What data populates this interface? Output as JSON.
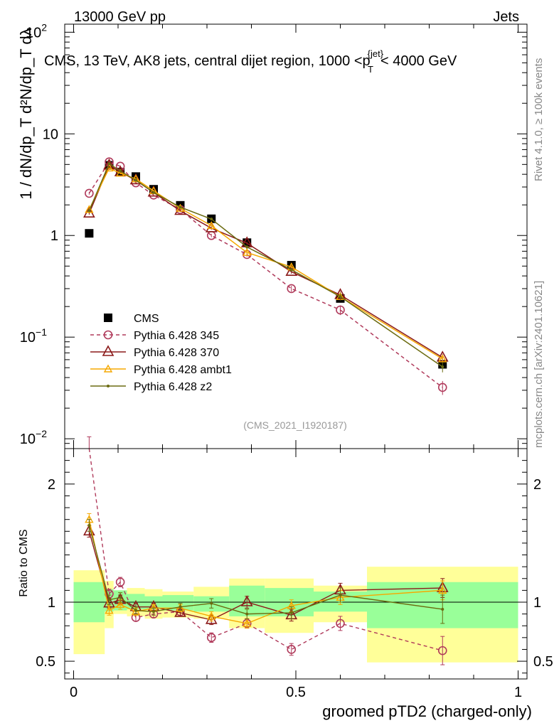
{
  "header": {
    "left": "13000 GeV pp",
    "right": "Jets"
  },
  "chart_data": {
    "type": "line",
    "title": "CMS, 13 TeV, AK8 jets, central dijet region, 1000 <p_T^{jet}< 4000 GeV",
    "title_main": "CMS, 13 TeV, AK8 jets, central dijet region, 1000 <p",
    "title_sup": "{jet}",
    "title_sub": "T",
    "title_end": "< 4000 GeV",
    "xlabel": "groomed pTD2 (charged-only)",
    "ylabel_top": "1 / dN/dp_T  d²N/dp_T dλ",
    "ylabel_ratio": "Ratio to CMS",
    "side_label_1": "Rivet 4.1.0, ≥ 100k events",
    "side_label_2": "mcplots.cern.ch [arXiv:2401.10621]",
    "analysis_label": "(CMS_2021_I1920187)",
    "xlim": [
      -0.02,
      1.02
    ],
    "ylim_main": [
      0.008,
      120
    ],
    "ylim_ratio": [
      0.35,
      2.3
    ],
    "x_ticks": [
      0,
      0.5,
      1
    ],
    "x_tick_labels": [
      "0",
      "0.5",
      "1"
    ],
    "y_main_ticks": [
      {
        "value": 100,
        "base": "10",
        "exp": "2"
      },
      {
        "value": 10,
        "base": "10",
        "exp": ""
      },
      {
        "value": 1,
        "base": "1",
        "exp": ""
      },
      {
        "value": 0.1,
        "base": "10",
        "exp": "−1"
      },
      {
        "value": 0.01,
        "base": "10",
        "exp": "−2"
      }
    ],
    "y_ratio_ticks": [
      {
        "value": 2,
        "label": "2"
      },
      {
        "value": 1,
        "label": "1"
      },
      {
        "value": 0.5,
        "label": "0.5"
      }
    ],
    "bins": [
      {
        "lo": 0.0,
        "hi": 0.07,
        "x": 0.035
      },
      {
        "lo": 0.07,
        "hi": 0.09,
        "x": 0.08
      },
      {
        "lo": 0.09,
        "hi": 0.12,
        "x": 0.105
      },
      {
        "lo": 0.12,
        "hi": 0.16,
        "x": 0.14
      },
      {
        "lo": 0.16,
        "hi": 0.2,
        "x": 0.18
      },
      {
        "lo": 0.2,
        "hi": 0.27,
        "x": 0.24
      },
      {
        "lo": 0.27,
        "hi": 0.35,
        "x": 0.31
      },
      {
        "lo": 0.35,
        "hi": 0.43,
        "x": 0.39
      },
      {
        "lo": 0.43,
        "hi": 0.54,
        "x": 0.49
      },
      {
        "lo": 0.54,
        "hi": 0.66,
        "x": 0.6
      },
      {
        "lo": 0.66,
        "hi": 1.0,
        "x": 0.83
      }
    ],
    "bands": {
      "green": [
        [
          0.83,
          1.17
        ],
        [
          0.92,
          1.11
        ],
        [
          0.93,
          1.1
        ],
        [
          0.94,
          1.07
        ],
        [
          0.94,
          1.05
        ],
        [
          0.93,
          1.06
        ],
        [
          0.92,
          1.05
        ],
        [
          0.88,
          1.14
        ],
        [
          0.88,
          1.12
        ],
        [
          0.92,
          1.09
        ],
        [
          0.78,
          1.17
        ]
      ],
      "yellow": [
        [
          0.56,
          1.27
        ],
        [
          0.78,
          1.18
        ],
        [
          0.9,
          1.1
        ],
        [
          0.88,
          1.12
        ],
        [
          0.86,
          1.11
        ],
        [
          0.87,
          1.09
        ],
        [
          0.86,
          1.13
        ],
        [
          0.78,
          1.2
        ],
        [
          0.74,
          1.2
        ],
        [
          0.83,
          1.14
        ],
        [
          0.49,
          1.3
        ]
      ]
    },
    "series": [
      {
        "name": "CMS",
        "color": "#000000",
        "marker": "square",
        "dash": "",
        "values": [
          1.05,
          4.9,
          4.2,
          3.8,
          2.85,
          1.98,
          1.46,
          0.85,
          0.51,
          0.24,
          0.054
        ],
        "errors": [
          0,
          0,
          0,
          0,
          0,
          0,
          0,
          0,
          0,
          0,
          0
        ],
        "ratio": [
          1,
          1,
          1,
          1,
          1,
          1,
          1,
          1,
          1,
          1,
          1
        ],
        "ratio_errors": [
          0,
          0,
          0,
          0,
          0,
          0,
          0,
          0,
          0,
          0,
          0
        ]
      },
      {
        "name": "Pythia 6.428 345",
        "color": "#b03a5b",
        "marker": "circle",
        "dash": "5,4",
        "values": [
          2.6,
          5.3,
          4.8,
          3.3,
          2.5,
          1.8,
          1.0,
          0.65,
          0.3,
          0.185,
          0.032
        ],
        "errors": [
          0.08,
          0.1,
          0.1,
          0.08,
          0.06,
          0.05,
          0.04,
          0.03,
          0.02,
          0.02,
          0.005
        ],
        "ratio": [
          2.45,
          1.07,
          1.17,
          0.87,
          0.9,
          0.92,
          0.7,
          0.82,
          0.6,
          0.82,
          0.59
        ],
        "ratio_errors": [
          0.05,
          0.04,
          0.04,
          0.03,
          0.03,
          0.03,
          0.04,
          0.04,
          0.05,
          0.06,
          0.12
        ]
      },
      {
        "name": "Pythia 6.428 370",
        "color": "#8b1a1a",
        "marker": "triangle-open",
        "dash": "",
        "values": [
          1.65,
          4.9,
          4.2,
          3.5,
          2.65,
          1.75,
          1.18,
          0.84,
          0.44,
          0.26,
          0.063
        ],
        "errors": [
          0.05,
          0.1,
          0.1,
          0.08,
          0.06,
          0.05,
          0.04,
          0.03,
          0.02,
          0.02,
          0.005
        ],
        "ratio": [
          1.6,
          0.99,
          1.02,
          0.96,
          0.96,
          0.91,
          0.85,
          1.0,
          0.89,
          1.1,
          1.12
        ],
        "ratio_errors": [
          0.05,
          0.04,
          0.04,
          0.03,
          0.03,
          0.03,
          0.04,
          0.05,
          0.05,
          0.06,
          0.08
        ]
      },
      {
        "name": "Pythia 6.428 ambt1",
        "color": "#f5a800",
        "marker": "triangle-small",
        "dash": "",
        "values": [
          1.8,
          4.6,
          4.1,
          3.6,
          2.75,
          1.85,
          1.25,
          0.68,
          0.49,
          0.25,
          0.061
        ],
        "errors": [
          0.05,
          0.1,
          0.1,
          0.08,
          0.06,
          0.05,
          0.04,
          0.03,
          0.02,
          0.02,
          0.005
        ],
        "ratio": [
          1.7,
          0.93,
          0.98,
          0.92,
          0.95,
          0.95,
          0.88,
          0.82,
          0.97,
          1.04,
          1.1
        ],
        "ratio_errors": [
          0.05,
          0.04,
          0.04,
          0.03,
          0.03,
          0.03,
          0.04,
          0.04,
          0.05,
          0.06,
          0.08
        ]
      },
      {
        "name": "Pythia 6.428 z2",
        "color": "#6b6b10",
        "marker": "dot",
        "dash": "",
        "values": [
          1.75,
          5.1,
          4.3,
          3.5,
          2.65,
          1.9,
          1.45,
          0.77,
          0.46,
          0.25,
          0.051
        ],
        "errors": [
          0.05,
          0.1,
          0.1,
          0.08,
          0.06,
          0.05,
          0.04,
          0.03,
          0.02,
          0.02,
          0.006
        ],
        "ratio": [
          1.65,
          1.02,
          1.04,
          0.93,
          0.92,
          0.96,
          0.99,
          0.9,
          0.91,
          1.06,
          0.94
        ],
        "ratio_errors": [
          0.05,
          0.04,
          0.04,
          0.03,
          0.03,
          0.03,
          0.04,
          0.04,
          0.05,
          0.06,
          0.12
        ]
      }
    ]
  }
}
